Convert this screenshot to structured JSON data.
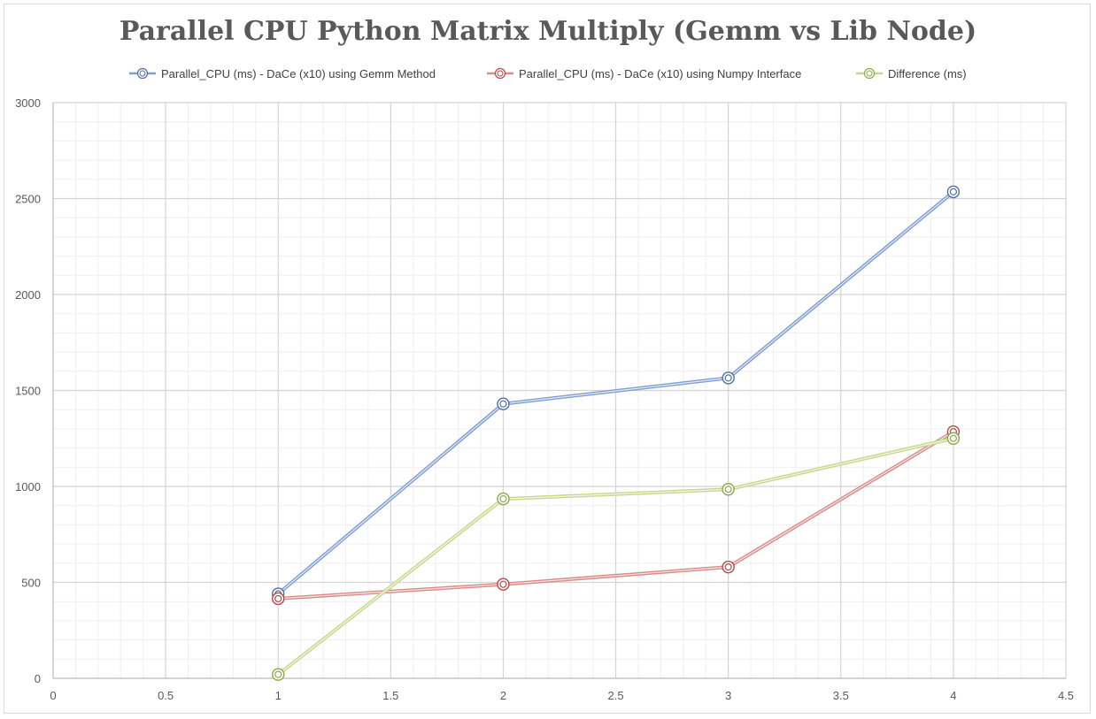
{
  "chart_data": {
    "type": "scatter",
    "title": "Parallel CPU Python Matrix Multiply (Gemm vs Lib Node)",
    "xlabel": "",
    "ylabel": "",
    "xlim": [
      0,
      4.5
    ],
    "ylim": [
      0,
      3000
    ],
    "x_ticks": [
      "0",
      "0.5",
      "1",
      "1.5",
      "2",
      "2.5",
      "3",
      "3.5",
      "4",
      "4.5"
    ],
    "y_ticks": [
      "0",
      "500",
      "1000",
      "1500",
      "2000",
      "2500",
      "3000"
    ],
    "grid": true,
    "legend_position": "top",
    "series": [
      {
        "name": "Parallel_CPU (ms) - DaCe (x10) using Gemm Method",
        "color": "#7f9fd0",
        "marker_color": "#4f6f9f",
        "x": [
          1,
          2,
          3,
          4
        ],
        "values": [
          440,
          1430,
          1565,
          2535
        ]
      },
      {
        "name": "Parallel_CPU (ms) - DaCe (x10) using Numpy Interface",
        "color": "#d98b88",
        "marker_color": "#b04a46",
        "x": [
          1,
          2,
          3,
          4
        ],
        "values": [
          415,
          490,
          580,
          1285
        ]
      },
      {
        "name": "Difference (ms)",
        "color": "#c6d88c",
        "marker_color": "#8aa84a",
        "x": [
          1,
          2,
          3,
          4
        ],
        "values": [
          20,
          935,
          985,
          1250
        ]
      }
    ]
  }
}
